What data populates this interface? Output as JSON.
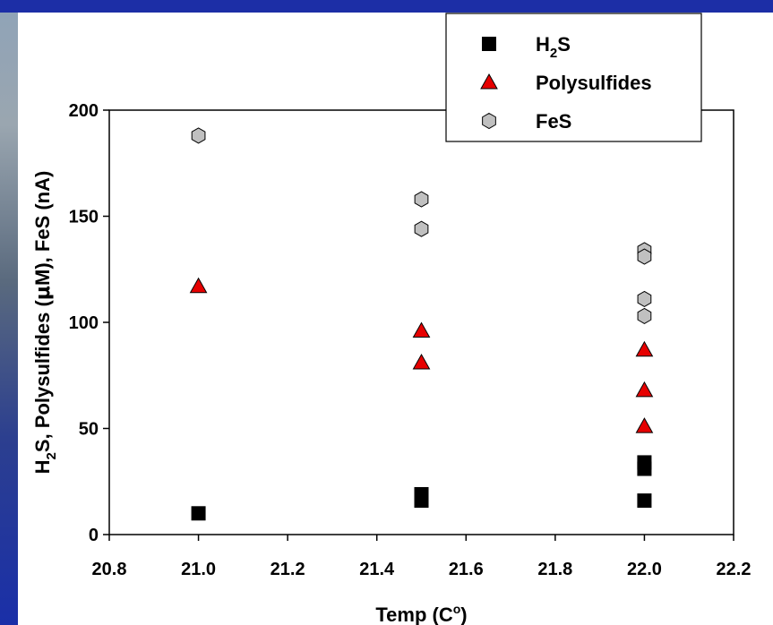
{
  "chart_data": {
    "type": "scatter",
    "xlabel": "Temp (C",
    "xlabel_sup": "o",
    "xlabel_tail": ")",
    "ylabel_parts": [
      "H",
      "2",
      "S, Polysulfides (",
      "μ",
      "M), FeS (nA)"
    ],
    "xlim": [
      20.8,
      22.2
    ],
    "ylim": [
      0,
      200
    ],
    "xticks": [
      "20.8",
      "21.0",
      "21.2",
      "21.4",
      "21.6",
      "21.8",
      "22.0",
      "22.2"
    ],
    "yticks": [
      "0",
      "50",
      "100",
      "150",
      "200"
    ],
    "legend_position": "top-right",
    "series": [
      {
        "name": "H2S",
        "label_main": "H",
        "label_sub": "2",
        "label_tail": "S",
        "marker": "square",
        "color": "#000000",
        "points": [
          [
            21.0,
            10
          ],
          [
            21.5,
            16
          ],
          [
            21.5,
            19
          ],
          [
            22.0,
            16
          ],
          [
            22.0,
            31
          ],
          [
            22.0,
            34
          ]
        ]
      },
      {
        "name": "Polysulfides",
        "label_main": "Polysulfides",
        "label_sub": "",
        "label_tail": "",
        "marker": "triangle",
        "color": "#e60000",
        "points": [
          [
            21.0,
            117
          ],
          [
            21.5,
            96
          ],
          [
            21.5,
            81
          ],
          [
            22.0,
            87
          ],
          [
            22.0,
            68
          ],
          [
            22.0,
            51
          ]
        ]
      },
      {
        "name": "FeS",
        "label_main": "FeS",
        "label_sub": "",
        "label_tail": "",
        "marker": "hexagon",
        "color": "#c0c0c0",
        "points": [
          [
            21.0,
            188
          ],
          [
            21.5,
            158
          ],
          [
            21.5,
            144
          ],
          [
            22.0,
            134
          ],
          [
            22.0,
            131
          ],
          [
            22.0,
            111
          ],
          [
            22.0,
            103
          ]
        ]
      }
    ]
  }
}
